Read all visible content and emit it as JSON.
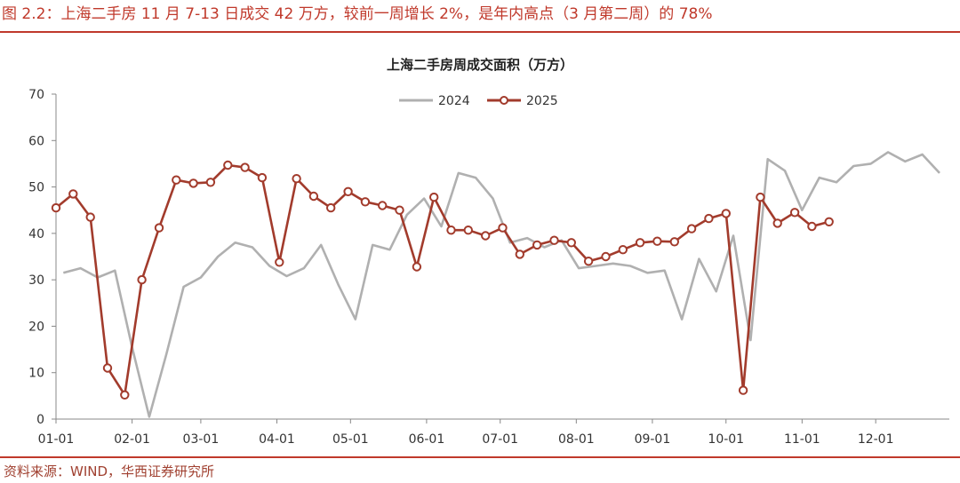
{
  "figure": {
    "title": "图 2.2：上海二手房 11 月 7-13 日成交 42 万方，较前一周增长 2%，是年内高点（3 月第二周）的 78%",
    "source": "资料来源：WIND，华西证券研究所"
  },
  "colors": {
    "accent": "#c0392b",
    "series_2024": "#b0b0b0",
    "series_2025": "#a23b2c"
  },
  "chart_data": {
    "type": "line",
    "title": "上海二手房周成交面积（万方）",
    "ylim": [
      0,
      70
    ],
    "yticks": [
      0,
      10,
      20,
      30,
      40,
      50,
      60,
      70
    ],
    "xlim": [
      "2025-01-01",
      "2025-12-31"
    ],
    "xticks": [
      {
        "label": "01-01",
        "x": "2025-01-01"
      },
      {
        "label": "02-01",
        "x": "2025-02-01"
      },
      {
        "label": "03-01",
        "x": "2025-03-01"
      },
      {
        "label": "04-01",
        "x": "2025-04-01"
      },
      {
        "label": "05-01",
        "x": "2025-05-01"
      },
      {
        "label": "06-01",
        "x": "2025-06-01"
      },
      {
        "label": "07-01",
        "x": "2025-07-01"
      },
      {
        "label": "08-01",
        "x": "2025-08-01"
      },
      {
        "label": "09-01",
        "x": "2025-09-01"
      },
      {
        "label": "10-01",
        "x": "2025-10-01"
      },
      {
        "label": "11-01",
        "x": "2025-11-01"
      },
      {
        "label": "12-01",
        "x": "2025-12-01"
      }
    ],
    "legend_position": "top-center",
    "grid": false,
    "series": [
      {
        "name": "2024",
        "color": "#b0b0b0",
        "markers": false,
        "points": [
          [
            "2025-01-04",
            31.5
          ],
          [
            "2025-01-11",
            32.5
          ],
          [
            "2025-01-18",
            30.5
          ],
          [
            "2025-01-25",
            32.0
          ],
          [
            "2025-02-01",
            15.5
          ],
          [
            "2025-02-08",
            0.5
          ],
          [
            "2025-02-15",
            14.0
          ],
          [
            "2025-02-22",
            28.5
          ],
          [
            "2025-03-01",
            30.5
          ],
          [
            "2025-03-08",
            35.0
          ],
          [
            "2025-03-15",
            38.0
          ],
          [
            "2025-03-22",
            37.0
          ],
          [
            "2025-03-29",
            33.0
          ],
          [
            "2025-04-05",
            30.8
          ],
          [
            "2025-04-12",
            32.5
          ],
          [
            "2025-04-19",
            37.5
          ],
          [
            "2025-04-26",
            29.0
          ],
          [
            "2025-05-03",
            21.5
          ],
          [
            "2025-05-10",
            37.5
          ],
          [
            "2025-05-17",
            36.5
          ],
          [
            "2025-05-24",
            44.0
          ],
          [
            "2025-05-31",
            47.5
          ],
          [
            "2025-06-07",
            41.5
          ],
          [
            "2025-06-14",
            53.0
          ],
          [
            "2025-06-21",
            52.0
          ],
          [
            "2025-06-28",
            47.5
          ],
          [
            "2025-07-05",
            38.0
          ],
          [
            "2025-07-12",
            39.0
          ],
          [
            "2025-07-19",
            37.0
          ],
          [
            "2025-07-26",
            38.5
          ],
          [
            "2025-08-02",
            32.5
          ],
          [
            "2025-08-09",
            33.0
          ],
          [
            "2025-08-16",
            33.5
          ],
          [
            "2025-08-23",
            33.0
          ],
          [
            "2025-08-30",
            31.5
          ],
          [
            "2025-09-06",
            32.0
          ],
          [
            "2025-09-13",
            21.5
          ],
          [
            "2025-09-20",
            34.5
          ],
          [
            "2025-09-27",
            27.5
          ],
          [
            "2025-10-04",
            39.5
          ],
          [
            "2025-10-11",
            17.0
          ],
          [
            "2025-10-18",
            56.0
          ],
          [
            "2025-10-25",
            53.5
          ],
          [
            "2025-11-01",
            45.0
          ],
          [
            "2025-11-08",
            52.0
          ],
          [
            "2025-11-15",
            51.0
          ],
          [
            "2025-11-22",
            54.5
          ],
          [
            "2025-11-29",
            55.0
          ],
          [
            "2025-12-06",
            57.5
          ],
          [
            "2025-12-13",
            55.5
          ],
          [
            "2025-12-20",
            57.0
          ],
          [
            "2025-12-27",
            53.0
          ]
        ]
      },
      {
        "name": "2025",
        "color": "#a23b2c",
        "markers": true,
        "points": [
          [
            "2025-01-01",
            45.5
          ],
          [
            "2025-01-08",
            48.5
          ],
          [
            "2025-01-15",
            43.5
          ],
          [
            "2025-01-22",
            11.0
          ],
          [
            "2025-01-29",
            5.2
          ],
          [
            "2025-02-05",
            30.0
          ],
          [
            "2025-02-12",
            41.2
          ],
          [
            "2025-02-19",
            51.5
          ],
          [
            "2025-02-26",
            50.8
          ],
          [
            "2025-03-05",
            51.0
          ],
          [
            "2025-03-12",
            54.7
          ],
          [
            "2025-03-19",
            54.2
          ],
          [
            "2025-03-26",
            52.0
          ],
          [
            "2025-04-02",
            33.8
          ],
          [
            "2025-04-09",
            51.8
          ],
          [
            "2025-04-16",
            48.0
          ],
          [
            "2025-04-23",
            45.5
          ],
          [
            "2025-04-30",
            49.0
          ],
          [
            "2025-05-07",
            46.8
          ],
          [
            "2025-05-14",
            46.0
          ],
          [
            "2025-05-21",
            45.0
          ],
          [
            "2025-05-28",
            32.8
          ],
          [
            "2025-06-04",
            47.8
          ],
          [
            "2025-06-11",
            40.7
          ],
          [
            "2025-06-18",
            40.7
          ],
          [
            "2025-06-25",
            39.5
          ],
          [
            "2025-07-02",
            41.2
          ],
          [
            "2025-07-09",
            35.5
          ],
          [
            "2025-07-16",
            37.5
          ],
          [
            "2025-07-23",
            38.5
          ],
          [
            "2025-07-30",
            38.0
          ],
          [
            "2025-08-06",
            34.0
          ],
          [
            "2025-08-13",
            35.0
          ],
          [
            "2025-08-20",
            36.5
          ],
          [
            "2025-08-27",
            38.0
          ],
          [
            "2025-09-03",
            38.3
          ],
          [
            "2025-09-10",
            38.2
          ],
          [
            "2025-09-17",
            41.0
          ],
          [
            "2025-09-24",
            43.2
          ],
          [
            "2025-10-01",
            44.3
          ],
          [
            "2025-10-08",
            6.2
          ],
          [
            "2025-10-15",
            47.8
          ],
          [
            "2025-10-22",
            42.2
          ],
          [
            "2025-10-29",
            44.5
          ],
          [
            "2025-11-05",
            41.5
          ],
          [
            "2025-11-12",
            42.5
          ]
        ]
      }
    ]
  }
}
